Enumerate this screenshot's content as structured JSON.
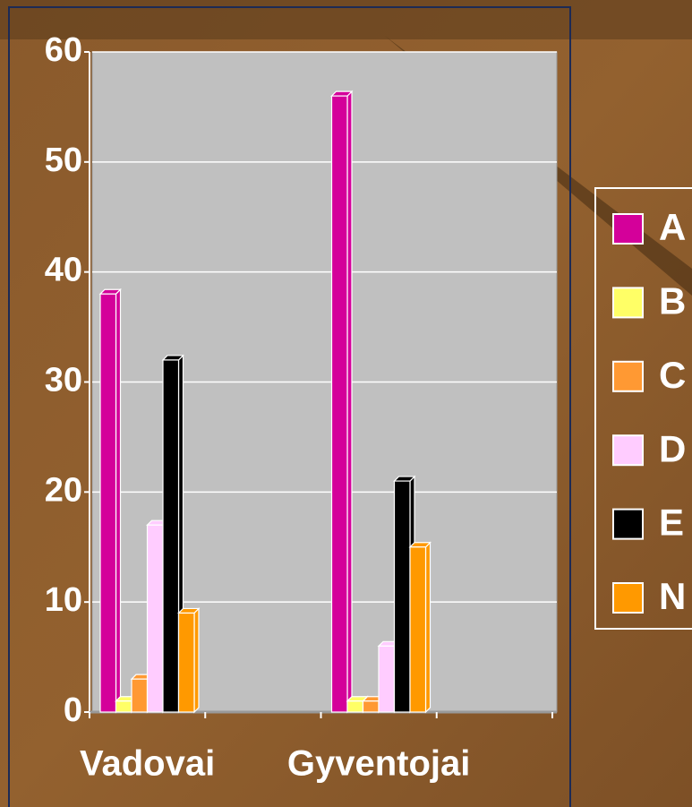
{
  "chart_data": {
    "type": "bar",
    "categories": [
      "Vadovai",
      null,
      "Gyventojai",
      null
    ],
    "series": [
      {
        "name": "A",
        "color": "#d4009a",
        "values": [
          38,
          null,
          56,
          null
        ]
      },
      {
        "name": "B",
        "color": "#ffff66",
        "values": [
          1,
          null,
          1,
          null
        ]
      },
      {
        "name": "C",
        "color": "#ff9933",
        "values": [
          3,
          null,
          1,
          null
        ]
      },
      {
        "name": "D",
        "color": "#ffccff",
        "values": [
          17,
          null,
          6,
          null
        ]
      },
      {
        "name": "E",
        "color": "#000000",
        "values": [
          32,
          null,
          21,
          null
        ]
      },
      {
        "name": "N",
        "color": "#ff9900",
        "values": [
          9,
          null,
          15,
          null
        ]
      }
    ],
    "ylim": [
      0,
      60
    ],
    "yticks": [
      0,
      10,
      20,
      30,
      40,
      50,
      60
    ],
    "grid": true,
    "legend": "right"
  }
}
